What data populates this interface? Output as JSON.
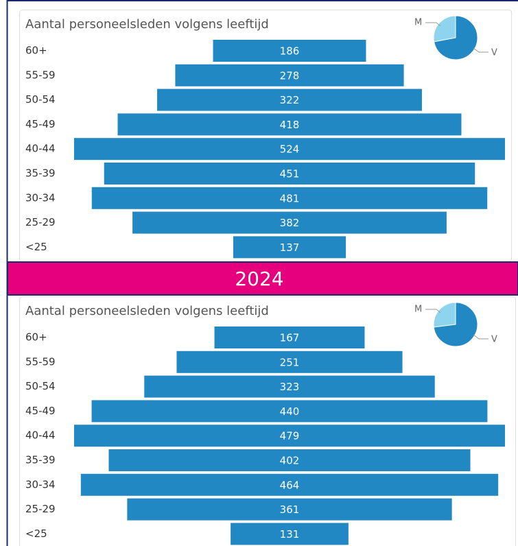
{
  "banner": "2024",
  "chart_data": [
    {
      "type": "funnel",
      "title": "Aantal personeelsleden volgens leeftijd",
      "categories": [
        "60+",
        "55-59",
        "50-54",
        "45-49",
        "40-44",
        "35-39",
        "30-34",
        "25-29",
        "<25"
      ],
      "values": [
        186,
        278,
        322,
        418,
        524,
        451,
        481,
        382,
        137
      ],
      "color": "#2188c4"
    },
    {
      "type": "pie",
      "categories": [
        "M",
        "V"
      ],
      "values": [
        28,
        72
      ],
      "colors": [
        "#8fd4ef",
        "#2188c4"
      ]
    },
    {
      "type": "funnel",
      "title": "Aantal personeelsleden volgens leeftijd",
      "categories": [
        "60+",
        "55-59",
        "50-54",
        "45-49",
        "40-44",
        "35-39",
        "30-34",
        "25-29",
        "<25"
      ],
      "values": [
        167,
        251,
        323,
        440,
        479,
        402,
        464,
        361,
        131
      ],
      "color": "#2188c4"
    },
    {
      "type": "pie",
      "categories": [
        "M",
        "V"
      ],
      "values": [
        27,
        73
      ],
      "colors": [
        "#8fd4ef",
        "#2188c4"
      ]
    }
  ]
}
